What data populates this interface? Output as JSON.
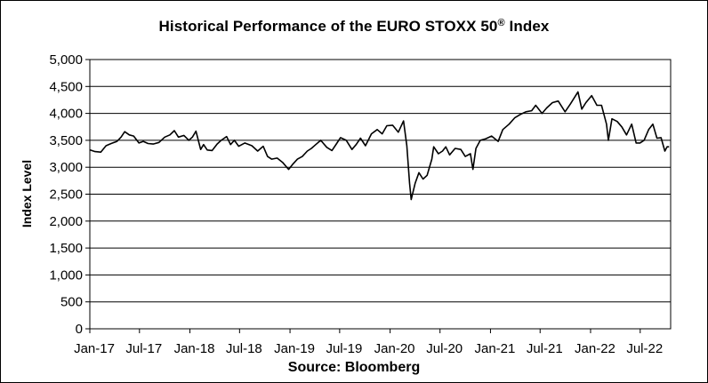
{
  "chart_data": {
    "type": "line",
    "title_main": "Historical Performance of the EURO STOXX 50",
    "title_mark": "®",
    "title_tail": " Index",
    "ylabel": "Index Level",
    "source": "Source: Bloomberg",
    "ylim": [
      0,
      5000
    ],
    "yticks": [
      "0",
      "500",
      "1,000",
      "1,500",
      "2,000",
      "2,500",
      "3,000",
      "3,500",
      "4,000",
      "4,500",
      "5,000"
    ],
    "xlim": [
      "2017-01-01",
      "2022-10-20"
    ],
    "xticks": [
      {
        "label": "Jan-17",
        "date": "2017-01-01"
      },
      {
        "label": "Jul-17",
        "date": "2017-07-01"
      },
      {
        "label": "Jan-18",
        "date": "2018-01-01"
      },
      {
        "label": "Jul-18",
        "date": "2018-07-01"
      },
      {
        "label": "Jan-19",
        "date": "2019-01-01"
      },
      {
        "label": "Jul-19",
        "date": "2019-07-01"
      },
      {
        "label": "Jan-20",
        "date": "2020-01-01"
      },
      {
        "label": "Jul-20",
        "date": "2020-07-01"
      },
      {
        "label": "Jan-21",
        "date": "2021-01-01"
      },
      {
        "label": "Jul-21",
        "date": "2021-07-01"
      },
      {
        "label": "Jan-22",
        "date": "2022-01-01"
      },
      {
        "label": "Jul-22",
        "date": "2022-07-01"
      }
    ],
    "grid": "horizontal",
    "color": "#000000",
    "series": [
      {
        "values": [
          [
            "2017-01-02",
            3320
          ],
          [
            "2017-01-20",
            3290
          ],
          [
            "2017-02-10",
            3280
          ],
          [
            "2017-03-01",
            3400
          ],
          [
            "2017-03-20",
            3440
          ],
          [
            "2017-04-10",
            3480
          ],
          [
            "2017-04-25",
            3560
          ],
          [
            "2017-05-08",
            3660
          ],
          [
            "2017-05-25",
            3600
          ],
          [
            "2017-06-10",
            3580
          ],
          [
            "2017-06-29",
            3450
          ],
          [
            "2017-07-15",
            3480
          ],
          [
            "2017-08-01",
            3440
          ],
          [
            "2017-08-20",
            3430
          ],
          [
            "2017-09-10",
            3460
          ],
          [
            "2017-10-01",
            3560
          ],
          [
            "2017-10-20",
            3600
          ],
          [
            "2017-11-05",
            3680
          ],
          [
            "2017-11-20",
            3560
          ],
          [
            "2017-12-10",
            3590
          ],
          [
            "2017-12-28",
            3500
          ],
          [
            "2018-01-10",
            3560
          ],
          [
            "2018-01-23",
            3670
          ],
          [
            "2018-02-09",
            3330
          ],
          [
            "2018-02-20",
            3420
          ],
          [
            "2018-03-05",
            3320
          ],
          [
            "2018-03-23",
            3310
          ],
          [
            "2018-04-10",
            3430
          ],
          [
            "2018-04-25",
            3500
          ],
          [
            "2018-05-15",
            3570
          ],
          [
            "2018-05-29",
            3420
          ],
          [
            "2018-06-12",
            3500
          ],
          [
            "2018-06-28",
            3390
          ],
          [
            "2018-07-20",
            3450
          ],
          [
            "2018-08-15",
            3400
          ],
          [
            "2018-09-05",
            3300
          ],
          [
            "2018-09-25",
            3390
          ],
          [
            "2018-10-11",
            3200
          ],
          [
            "2018-10-26",
            3150
          ],
          [
            "2018-11-15",
            3170
          ],
          [
            "2018-12-05",
            3090
          ],
          [
            "2018-12-27",
            2960
          ],
          [
            "2019-01-10",
            3050
          ],
          [
            "2019-01-28",
            3150
          ],
          [
            "2019-02-15",
            3200
          ],
          [
            "2019-03-05",
            3300
          ],
          [
            "2019-03-20",
            3350
          ],
          [
            "2019-04-05",
            3420
          ],
          [
            "2019-04-23",
            3500
          ],
          [
            "2019-05-15",
            3370
          ],
          [
            "2019-06-03",
            3310
          ],
          [
            "2019-06-20",
            3440
          ],
          [
            "2019-07-04",
            3550
          ],
          [
            "2019-07-25",
            3500
          ],
          [
            "2019-08-15",
            3330
          ],
          [
            "2019-08-30",
            3420
          ],
          [
            "2019-09-15",
            3540
          ],
          [
            "2019-10-03",
            3400
          ],
          [
            "2019-10-25",
            3620
          ],
          [
            "2019-11-15",
            3700
          ],
          [
            "2019-12-03",
            3620
          ],
          [
            "2019-12-20",
            3770
          ],
          [
            "2020-01-10",
            3780
          ],
          [
            "2020-01-31",
            3650
          ],
          [
            "2020-02-19",
            3860
          ],
          [
            "2020-03-02",
            3400
          ],
          [
            "2020-03-12",
            2700
          ],
          [
            "2020-03-18",
            2400
          ],
          [
            "2020-04-01",
            2700
          ],
          [
            "2020-04-15",
            2900
          ],
          [
            "2020-04-30",
            2780
          ],
          [
            "2020-05-15",
            2850
          ],
          [
            "2020-06-01",
            3150
          ],
          [
            "2020-06-08",
            3380
          ],
          [
            "2020-06-25",
            3250
          ],
          [
            "2020-07-10",
            3300
          ],
          [
            "2020-07-22",
            3380
          ],
          [
            "2020-08-05",
            3230
          ],
          [
            "2020-08-25",
            3350
          ],
          [
            "2020-09-15",
            3330
          ],
          [
            "2020-10-01",
            3200
          ],
          [
            "2020-10-20",
            3250
          ],
          [
            "2020-10-29",
            2960
          ],
          [
            "2020-11-09",
            3350
          ],
          [
            "2020-11-25",
            3500
          ],
          [
            "2020-12-15",
            3530
          ],
          [
            "2021-01-05",
            3580
          ],
          [
            "2021-01-29",
            3480
          ],
          [
            "2021-02-15",
            3700
          ],
          [
            "2021-03-10",
            3800
          ],
          [
            "2021-03-31",
            3920
          ],
          [
            "2021-04-20",
            3980
          ],
          [
            "2021-05-10",
            4030
          ],
          [
            "2021-05-31",
            4050
          ],
          [
            "2021-06-15",
            4150
          ],
          [
            "2021-07-08",
            4000
          ],
          [
            "2021-07-25",
            4100
          ],
          [
            "2021-08-15",
            4200
          ],
          [
            "2021-09-05",
            4230
          ],
          [
            "2021-09-30",
            4030
          ],
          [
            "2021-10-20",
            4180
          ],
          [
            "2021-11-16",
            4400
          ],
          [
            "2021-11-30",
            4080
          ],
          [
            "2021-12-15",
            4200
          ],
          [
            "2022-01-05",
            4330
          ],
          [
            "2022-01-24",
            4150
          ],
          [
            "2022-02-10",
            4150
          ],
          [
            "2022-02-28",
            3800
          ],
          [
            "2022-03-07",
            3500
          ],
          [
            "2022-03-20",
            3900
          ],
          [
            "2022-04-08",
            3850
          ],
          [
            "2022-04-25",
            3750
          ],
          [
            "2022-05-12",
            3600
          ],
          [
            "2022-05-31",
            3800
          ],
          [
            "2022-06-16",
            3450
          ],
          [
            "2022-06-30",
            3450
          ],
          [
            "2022-07-15",
            3500
          ],
          [
            "2022-08-01",
            3700
          ],
          [
            "2022-08-16",
            3800
          ],
          [
            "2022-08-31",
            3540
          ],
          [
            "2022-09-15",
            3550
          ],
          [
            "2022-09-29",
            3300
          ],
          [
            "2022-10-07",
            3380
          ],
          [
            "2022-10-14",
            3380
          ]
        ]
      }
    ]
  }
}
